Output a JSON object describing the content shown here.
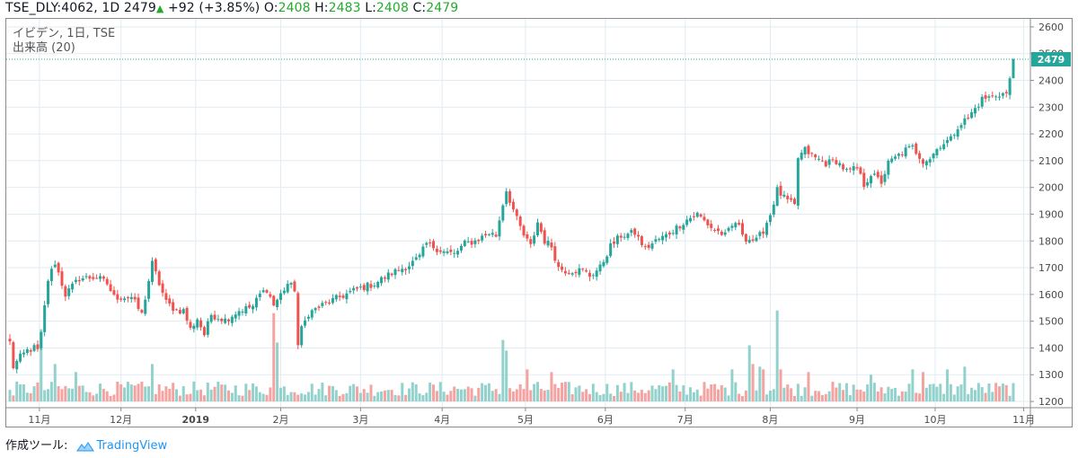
{
  "header": {
    "symbol": "TSE_DLY:4062,",
    "interval": "1D",
    "last": "2479",
    "change": "+92 (+3.85%)",
    "o_label": "O:",
    "o_value": "2408",
    "h_label": "H:",
    "h_value": "2483",
    "l_label": "L:",
    "l_value": "2408",
    "c_label": "C:",
    "c_value": "2479"
  },
  "legend": {
    "line1": "イビデン, 1日, TSE",
    "line2": "出来高 (20)"
  },
  "footer": {
    "prefix": "作成ツール:",
    "brand": "TradingView"
  },
  "colors": {
    "up": "#26a69a",
    "down": "#ef5350",
    "up_volume": "#93d2cc",
    "down_volume": "#f5a3a1",
    "grid": "#e1ecf2",
    "last_price": "#26a69a",
    "header_green": "#22ab2c"
  },
  "chart_data": {
    "type": "candlestick",
    "title": "イビデン, 1日, TSE",
    "price_axis": {
      "ticks": [
        1200,
        1300,
        1400,
        1500,
        1600,
        1700,
        1800,
        1900,
        2000,
        2100,
        2200,
        2300,
        2400,
        2500,
        2600
      ],
      "range": [
        1180,
        2630
      ]
    },
    "time_axis_labels": [
      "11月",
      "12月",
      "2019",
      "2月",
      "3月",
      "4月",
      "5月",
      "6月",
      "7月",
      "8月",
      "9月",
      "10月",
      "11月"
    ],
    "last_price_label": "2479",
    "volume_indicator": "出来高 (20)",
    "price_path": [
      [
        0,
        1420
      ],
      [
        1,
        1330
      ],
      [
        3,
        1365
      ],
      [
        5,
        1390
      ],
      [
        7,
        1400
      ],
      [
        8,
        1390
      ],
      [
        9,
        1450
      ],
      [
        11,
        1655
      ],
      [
        13,
        1720
      ],
      [
        16,
        1600
      ],
      [
        20,
        1660
      ],
      [
        25,
        1665
      ],
      [
        28,
        1640
      ],
      [
        30,
        1590
      ],
      [
        35,
        1590
      ],
      [
        38,
        1525
      ],
      [
        41,
        1715
      ],
      [
        43,
        1640
      ],
      [
        45,
        1570
      ],
      [
        48,
        1540
      ],
      [
        50,
        1540
      ],
      [
        52,
        1470
      ],
      [
        54,
        1510
      ],
      [
        56,
        1450
      ],
      [
        58,
        1525
      ],
      [
        62,
        1505
      ],
      [
        66,
        1540
      ],
      [
        70,
        1555
      ],
      [
        72,
        1600
      ],
      [
        74,
        1620
      ],
      [
        76,
        1560
      ],
      [
        78,
        1600
      ],
      [
        80,
        1640
      ],
      [
        82,
        1620
      ],
      [
        83,
        1410
      ],
      [
        84,
        1470
      ],
      [
        86,
        1530
      ],
      [
        90,
        1560
      ],
      [
        95,
        1590
      ],
      [
        100,
        1620
      ],
      [
        105,
        1640
      ],
      [
        110,
        1680
      ],
      [
        115,
        1710
      ],
      [
        118,
        1740
      ],
      [
        120,
        1790
      ],
      [
        125,
        1760
      ],
      [
        128,
        1750
      ],
      [
        131,
        1790
      ],
      [
        134,
        1800
      ],
      [
        138,
        1830
      ],
      [
        140,
        1820
      ],
      [
        142,
        1940
      ],
      [
        143,
        1990
      ],
      [
        146,
        1880
      ],
      [
        148,
        1820
      ],
      [
        150,
        1780
      ],
      [
        152,
        1870
      ],
      [
        154,
        1800
      ],
      [
        156,
        1780
      ],
      [
        158,
        1700
      ],
      [
        160,
        1690
      ],
      [
        165,
        1690
      ],
      [
        167,
        1670
      ],
      [
        170,
        1700
      ],
      [
        173,
        1780
      ],
      [
        176,
        1820
      ],
      [
        180,
        1830
      ],
      [
        183,
        1770
      ],
      [
        186,
        1800
      ],
      [
        189,
        1820
      ],
      [
        192,
        1850
      ],
      [
        195,
        1880
      ],
      [
        198,
        1900
      ],
      [
        202,
        1850
      ],
      [
        206,
        1820
      ],
      [
        209,
        1870
      ],
      [
        212,
        1810
      ],
      [
        215,
        1800
      ],
      [
        217,
        1840
      ],
      [
        219,
        1900
      ],
      [
        221,
        1990
      ],
      [
        223,
        1960
      ],
      [
        226,
        1930
      ],
      [
        227,
        2110
      ],
      [
        229,
        2140
      ],
      [
        232,
        2110
      ],
      [
        235,
        2090
      ],
      [
        238,
        2100
      ],
      [
        241,
        2060
      ],
      [
        244,
        2070
      ],
      [
        246,
        2010
      ],
      [
        248,
        2050
      ],
      [
        251,
        2020
      ],
      [
        253,
        2090
      ],
      [
        255,
        2110
      ],
      [
        258,
        2140
      ],
      [
        260,
        2150
      ],
      [
        263,
        2100
      ],
      [
        265,
        2110
      ],
      [
        268,
        2160
      ],
      [
        271,
        2180
      ],
      [
        273,
        2230
      ],
      [
        276,
        2260
      ],
      [
        280,
        2330
      ],
      [
        283,
        2340
      ],
      [
        285,
        2350
      ],
      [
        287,
        2350
      ],
      [
        288,
        2400
      ],
      [
        289,
        2479
      ]
    ],
    "volume_events": [
      [
        9,
        1470
      ],
      [
        13,
        1340
      ],
      [
        19,
        1310
      ],
      [
        41,
        1340
      ],
      [
        76,
        1530
      ],
      [
        77,
        1420
      ],
      [
        142,
        1430
      ],
      [
        143,
        1390
      ],
      [
        149,
        1320
      ],
      [
        156,
        1310
      ],
      [
        191,
        1320
      ],
      [
        208,
        1320
      ],
      [
        213,
        1410
      ],
      [
        214,
        1340
      ],
      [
        216,
        1330
      ],
      [
        217,
        1320
      ],
      [
        221,
        1540
      ],
      [
        222,
        1320
      ],
      [
        230,
        1310
      ],
      [
        248,
        1300
      ],
      [
        260,
        1320
      ],
      [
        263,
        1310
      ],
      [
        270,
        1320
      ],
      [
        275,
        1330
      ]
    ]
  }
}
